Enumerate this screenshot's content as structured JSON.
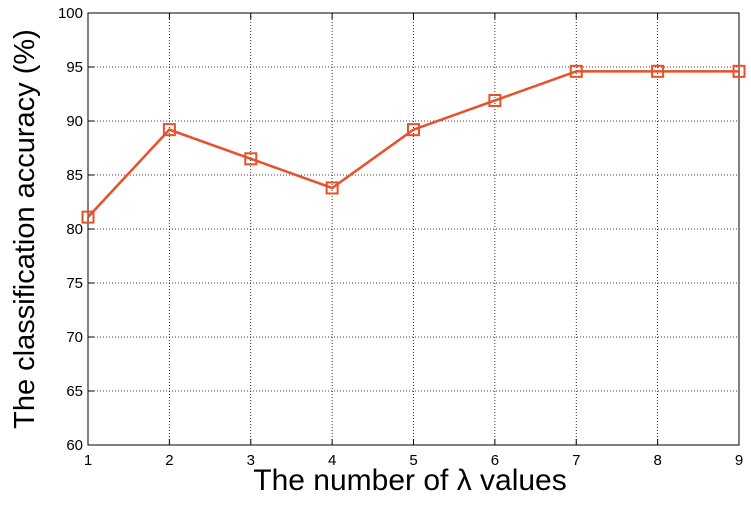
{
  "chart_data": {
    "type": "line",
    "xlabel": "The number of λ values",
    "ylabel": "The classification accuracy (%)",
    "x": [
      1,
      2,
      3,
      4,
      5,
      6,
      7,
      8,
      9
    ],
    "series": [
      {
        "values": [
          81.1,
          89.2,
          86.5,
          83.8,
          89.2,
          91.9,
          94.6,
          94.6,
          94.6
        ],
        "color": "#e8502a"
      }
    ],
    "xlim": [
      1,
      9
    ],
    "xticks": [
      1,
      2,
      3,
      4,
      5,
      6,
      7,
      8,
      9
    ],
    "ylim": [
      60,
      100
    ],
    "yticks": [
      60,
      65,
      70,
      75,
      80,
      85,
      90,
      95,
      100
    ],
    "grid": true,
    "marker": "square"
  }
}
